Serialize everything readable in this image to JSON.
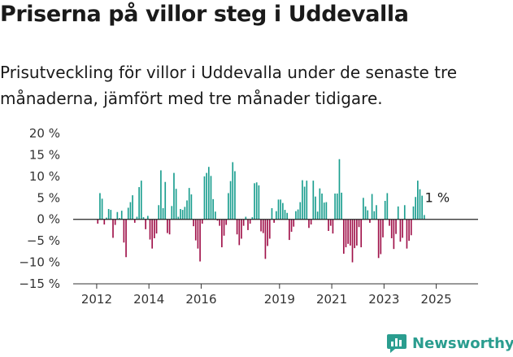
{
  "header": {
    "title": "Priserna på villor steg i Uddevalla",
    "subtitle": "Prisutveckling för villor i Uddevalla under de senaste tre månaderna, jämfört med tre månader tidigare."
  },
  "brand": {
    "name": "Newsworthy"
  },
  "colors": {
    "positive": "#1a9e8f",
    "negative": "#a0124a",
    "zero_line": "#222222",
    "axis": "#333333"
  },
  "chart_data": {
    "type": "bar",
    "title": "Priserna på villor steg i Uddevalla",
    "xlabel": "",
    "ylabel": "",
    "ylim": [
      -15,
      20
    ],
    "yticks": [
      20,
      15,
      10,
      5,
      0,
      -5,
      -10,
      -15
    ],
    "ytick_labels": [
      "20 %",
      "15 %",
      "10 %",
      "5 %",
      "0 %",
      "−5 %",
      "−10 %",
      "−15 %"
    ],
    "xticks": [
      2012,
      2014,
      2016,
      2019,
      2021,
      2023,
      2025
    ],
    "xtick_labels": [
      "2012",
      "2014",
      "2016",
      "2019",
      "2021",
      "2023",
      "2025"
    ],
    "start": "2012-01",
    "values": [
      -1.0,
      6.1,
      4.8,
      -1.2,
      0.4,
      2.4,
      2.2,
      -4.3,
      -1.3,
      1.7,
      0.3,
      2.0,
      -5.4,
      -8.8,
      2.7,
      4.0,
      5.6,
      -0.8,
      0.6,
      7.5,
      9.0,
      0.5,
      -2.3,
      0.8,
      -4.7,
      -6.8,
      -4.4,
      -3.3,
      3.3,
      11.4,
      2.6,
      8.7,
      -3.2,
      -3.5,
      3.1,
      10.8,
      7.1,
      0.6,
      2.4,
      2.2,
      2.9,
      4.4,
      7.3,
      5.8,
      -1.6,
      -4.9,
      -6.8,
      -9.8,
      -1.0,
      10.0,
      10.8,
      12.2,
      10.1,
      4.7,
      1.8,
      -0.3,
      -1.5,
      -6.5,
      -3.8,
      -1.3,
      6.1,
      8.9,
      13.3,
      11.2,
      -3.5,
      -6.0,
      -4.5,
      -1.5,
      0.6,
      -2.5,
      -1.0,
      0.5,
      8.4,
      8.6,
      7.9,
      -2.8,
      -3.2,
      -9.2,
      -6.2,
      -4.5,
      2.6,
      -0.8,
      1.9,
      4.6,
      4.6,
      3.8,
      2.2,
      1.5,
      -4.8,
      -2.9,
      -1.7,
      1.9,
      2.3,
      4.0,
      9.1,
      7.6,
      9.0,
      -2.0,
      -1.2,
      9.0,
      5.3,
      1.8,
      7.2,
      6.0,
      3.9,
      4.0,
      -2.7,
      -1.5,
      -3.3,
      6.0,
      6.0,
      14.0,
      6.2,
      -8.0,
      -6.5,
      -5.7,
      -6.1,
      -10.0,
      -6.7,
      -6.1,
      -1.8,
      -6.5,
      5.0,
      3.0,
      2.1,
      -0.8,
      5.9,
      1.9,
      3.3,
      -9.0,
      -8.1,
      -4.2,
      4.3,
      6.1,
      -1.5,
      -4.4,
      -6.9,
      -3.4,
      3.0,
      -5.2,
      -4.3,
      3.3,
      -6.8,
      -5.0,
      -3.7,
      3.0,
      5.2,
      9.0,
      7.0,
      5.5,
      1.0
    ],
    "annotation": "1 %"
  }
}
